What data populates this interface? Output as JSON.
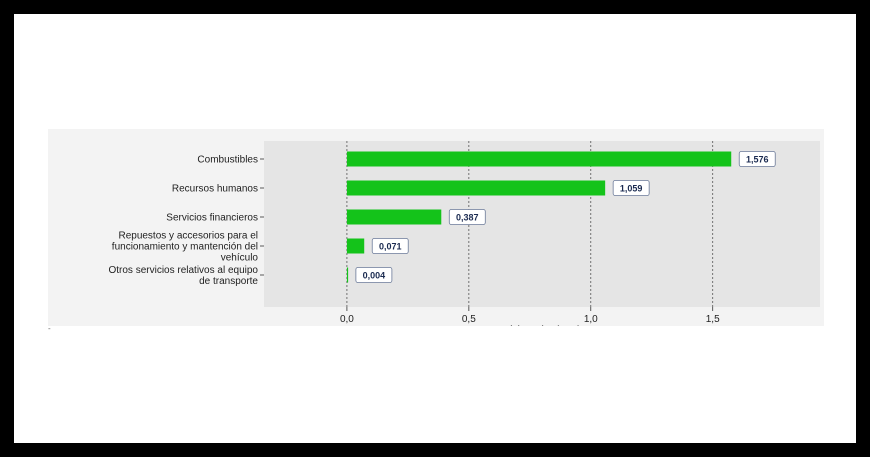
{
  "chart_data": {
    "type": "bar",
    "orientation": "horizontal",
    "categories": [
      [
        "Combustibles"
      ],
      [
        "Recursos humanos"
      ],
      [
        "Servicios financieros"
      ],
      [
        "Repuestos y accesorios para el",
        "funcionamiento y mantención del",
        "vehículo"
      ],
      [
        "Otros servicios relativos al equipo",
        "de transporte"
      ]
    ],
    "values": [
      1.576,
      1.059,
      0.387,
      0.071,
      0.004
    ],
    "value_labels": [
      "1,576",
      "1,059",
      "0,387",
      "0,071",
      "0,004"
    ],
    "xlabel": "Incidencia (pp.)",
    "xlim": [
      -0.34,
      1.94
    ],
    "xticks": [
      0.0,
      0.5,
      1.0,
      1.5
    ],
    "xtick_labels": [
      "0,0",
      "0,5",
      "1,0",
      "1,5"
    ],
    "grid": "vertical dashed",
    "bar_color": "#14c31a",
    "plot_background": "#e5e5e5"
  },
  "stray_mark": "-"
}
